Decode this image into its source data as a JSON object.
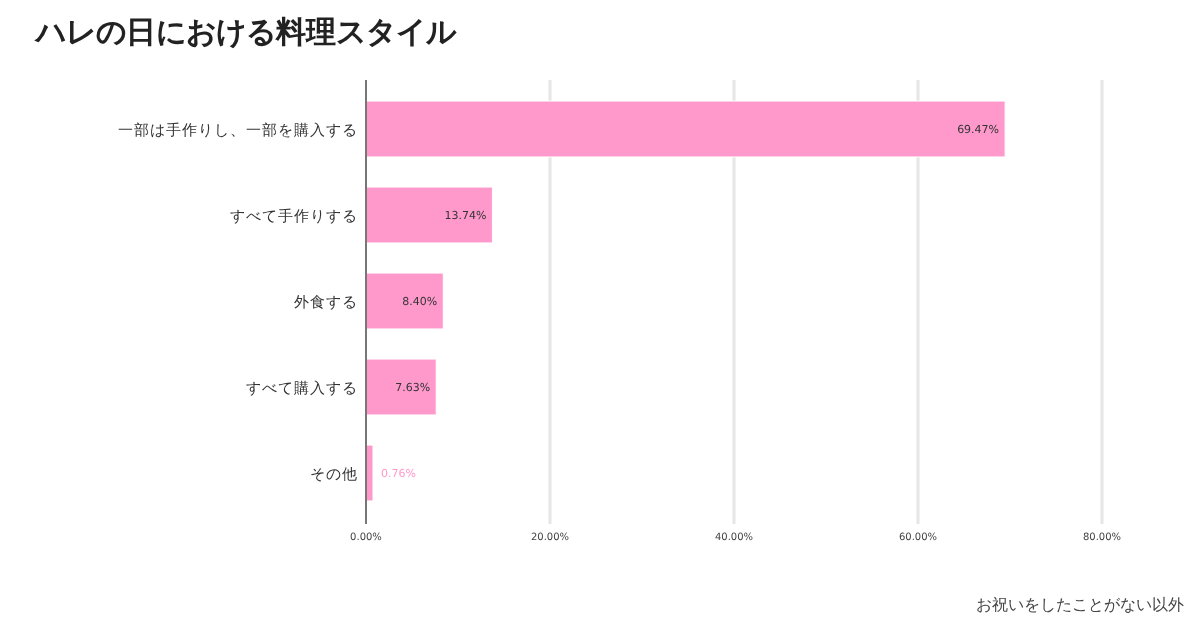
{
  "chart_data": {
    "type": "bar",
    "orientation": "horizontal",
    "title": "ハレの日における料理スタイル",
    "categories": [
      "一部は手作りし、一部を購入する",
      "すべて手作りする",
      "外食する",
      "すべて購入する",
      "その他"
    ],
    "values": [
      69.47,
      13.74,
      8.4,
      7.63,
      0.76
    ],
    "value_labels": [
      "69.47%",
      "13.74%",
      "8.40%",
      "7.63%",
      "0.76%"
    ],
    "color": "#ff99cc",
    "xlim": [
      0,
      80
    ],
    "xticks": [
      {
        "value": 0,
        "label": "0.00%"
      },
      {
        "value": 20,
        "label": "20.00%"
      },
      {
        "value": 40,
        "label": "40.00%"
      },
      {
        "value": 60,
        "label": "60.00%"
      },
      {
        "value": 80,
        "label": "80.00%"
      }
    ],
    "grid": "x",
    "annotations": [
      "お祝いをしたことがない以外"
    ]
  }
}
